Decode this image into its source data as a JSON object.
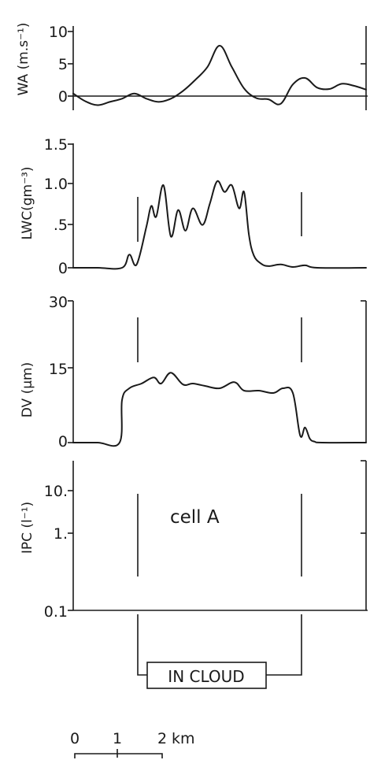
{
  "chart_data": [
    {
      "type": "line",
      "ylabel": "WA (m.s⁻¹)",
      "yticks": [
        "10",
        "5",
        "0"
      ],
      "ylim": [
        -3,
        10
      ],
      "x_unit": "km",
      "x": [
        0,
        0.5,
        1,
        1.5,
        2,
        2.5,
        3,
        3.5,
        4,
        4.5,
        5,
        5.5,
        6,
        6.5,
        7,
        7.5,
        8,
        8.5,
        9,
        9.5,
        10,
        10.5,
        11,
        11.5,
        12
      ],
      "values": [
        0.4,
        -0.8,
        -1.4,
        -0.9,
        -0.4,
        0.4,
        -0.4,
        -0.9,
        -0.4,
        0.8,
        2.5,
        4.5,
        7.8,
        4.5,
        1.2,
        -0.3,
        -0.5,
        -1.2,
        1.8,
        2.8,
        1.3,
        1.1,
        1.9,
        1.6,
        1.0
      ]
    },
    {
      "type": "line",
      "ylabel": "LWC(gm⁻³)",
      "yticks": [
        "1.5",
        "1.0",
        ".5",
        "0"
      ],
      "ylim": [
        0,
        1.5
      ],
      "x": [
        0,
        1,
        2,
        2.3,
        2.6,
        3.0,
        3.2,
        3.4,
        3.7,
        4.0,
        4.3,
        4.6,
        4.9,
        5.3,
        5.6,
        5.9,
        6.2,
        6.5,
        6.8,
        7.0,
        7.2,
        7.4,
        7.7,
        8.0,
        8.5,
        9,
        9.5,
        10,
        12
      ],
      "values": [
        0,
        0,
        0,
        0.16,
        0.04,
        0.5,
        0.75,
        0.62,
        1.0,
        0.38,
        0.7,
        0.45,
        0.72,
        0.52,
        0.78,
        1.05,
        0.92,
        1.0,
        0.72,
        0.92,
        0.4,
        0.15,
        0.05,
        0.02,
        0.04,
        0.01,
        0.03,
        0,
        0
      ]
    },
    {
      "type": "line",
      "ylabel": "DV (μm)",
      "yticks": [
        "30",
        "15",
        "0"
      ],
      "ylim": [
        0,
        30
      ],
      "x": [
        0,
        1,
        1.9,
        2.0,
        2.3,
        2.8,
        3.3,
        3.6,
        4.0,
        4.5,
        4.9,
        5.4,
        6.0,
        6.6,
        7.0,
        7.6,
        8.2,
        8.6,
        9.0,
        9.3,
        9.5,
        9.7,
        9.9,
        10.2,
        12
      ],
      "values": [
        0,
        0,
        0,
        9,
        11.5,
        12.5,
        13.8,
        12.5,
        14.8,
        12.3,
        12.5,
        12,
        11.5,
        12.8,
        11,
        11,
        10.5,
        11.5,
        10.5,
        1.5,
        3.2,
        0.8,
        0.2,
        0,
        0
      ]
    },
    {
      "type": "line",
      "ylabel": "IPC (l⁻¹)",
      "yscale": "log",
      "yticks": [
        "10.",
        "1.",
        "0.1"
      ],
      "annotation": "cell A",
      "x": [],
      "values": []
    }
  ],
  "in_cloud_label": "IN CLOUD",
  "scale_bar": {
    "ticks": [
      "0",
      "1",
      "2"
    ],
    "unit": "km"
  }
}
